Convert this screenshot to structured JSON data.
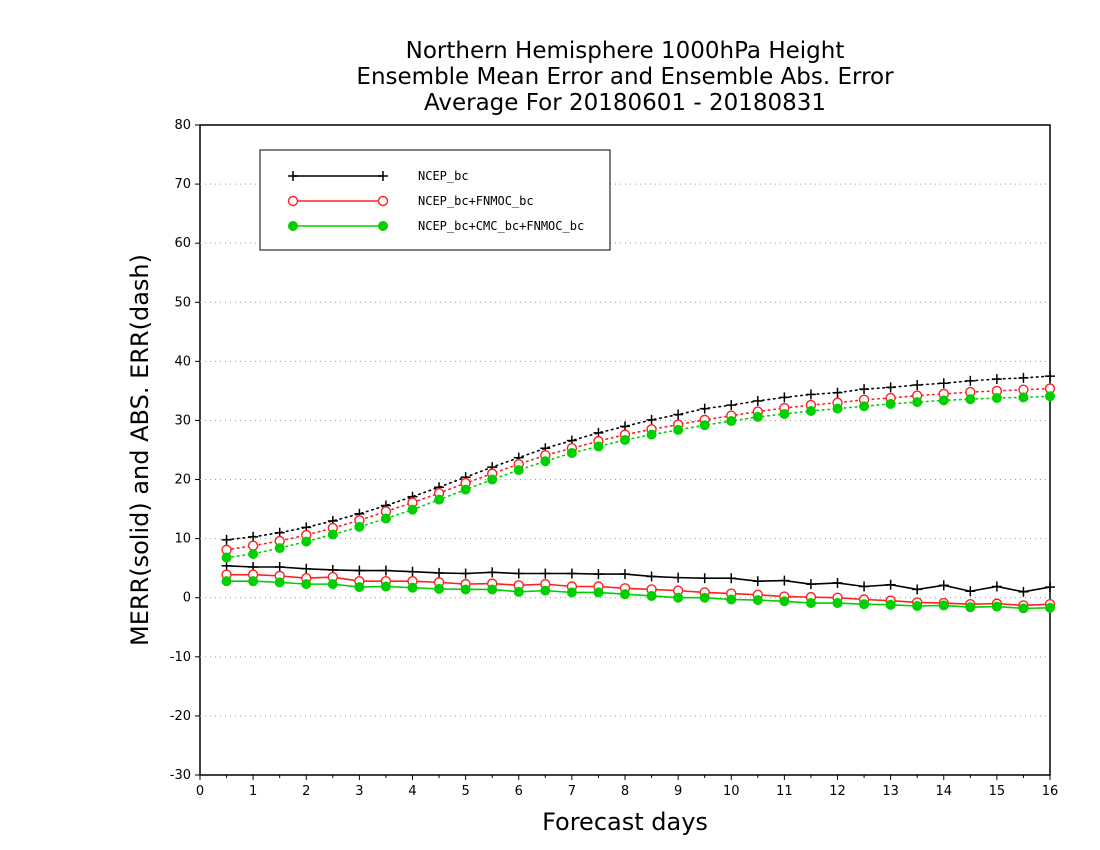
{
  "chart_data": {
    "type": "line",
    "title_lines": [
      "Northern Hemisphere 1000hPa Height",
      "Ensemble Mean Error and Ensemble Abs. Error",
      "Average For 20180601 - 20180831"
    ],
    "xlabel": "Forecast days",
    "ylabel": "MERR(solid) and ABS. ERR(dash)",
    "xlim": [
      0,
      16
    ],
    "ylim": [
      -30,
      80
    ],
    "xticks": [
      0,
      1,
      2,
      3,
      4,
      5,
      6,
      7,
      8,
      9,
      10,
      11,
      12,
      13,
      14,
      15,
      16
    ],
    "yticks": [
      -30,
      -20,
      -10,
      0,
      10,
      20,
      30,
      40,
      50,
      60,
      70,
      80
    ],
    "grid": "horizontal dotted",
    "legend_position": "top-left",
    "x": [
      0.5,
      1,
      1.5,
      2,
      2.5,
      3,
      3.5,
      4,
      4.5,
      5,
      5.5,
      6,
      6.5,
      7,
      7.5,
      8,
      8.5,
      9,
      9.5,
      10,
      10.5,
      11,
      11.5,
      12,
      12.5,
      13,
      13.5,
      14,
      14.5,
      15,
      15.5,
      16
    ],
    "series": [
      {
        "name": "NCEP_bc",
        "color": "#000000",
        "marker": "plus",
        "merr": [
          5.4,
          5.2,
          5.2,
          4.9,
          4.7,
          4.6,
          4.6,
          4.4,
          4.2,
          4.1,
          4.3,
          4.1,
          4.1,
          4.1,
          4.0,
          4.0,
          3.6,
          3.4,
          3.3,
          3.3,
          2.8,
          2.9,
          2.3,
          2.5,
          1.9,
          2.2,
          1.4,
          2.1,
          1.1,
          1.9,
          1.0,
          1.8
        ],
        "abserr": [
          9.8,
          10.3,
          11.0,
          11.9,
          13.0,
          14.2,
          15.6,
          17.1,
          18.7,
          20.4,
          22.1,
          23.7,
          25.3,
          26.6,
          27.9,
          29.0,
          30.1,
          31.0,
          32.0,
          32.6,
          33.3,
          33.9,
          34.4,
          34.7,
          35.3,
          35.6,
          36.0,
          36.3,
          36.7,
          37.0,
          37.2,
          37.5
        ]
      },
      {
        "name": "NCEP_bc+FNMOC_bc",
        "color": "#ff2020",
        "marker": "open-circle",
        "merr": [
          3.9,
          3.9,
          3.7,
          3.3,
          3.5,
          2.8,
          2.8,
          2.8,
          2.6,
          2.3,
          2.4,
          2.1,
          2.3,
          1.9,
          1.9,
          1.6,
          1.4,
          1.2,
          0.9,
          0.7,
          0.5,
          0.2,
          0.1,
          0.0,
          -0.3,
          -0.5,
          -0.8,
          -0.9,
          -1.1,
          -1.0,
          -1.3,
          -1.1
        ],
        "abserr": [
          8.1,
          8.8,
          9.6,
          10.6,
          11.8,
          13.1,
          14.6,
          16.1,
          17.7,
          19.4,
          21.0,
          22.6,
          24.1,
          25.3,
          26.5,
          27.6,
          28.5,
          29.3,
          30.1,
          30.8,
          31.5,
          32.1,
          32.6,
          33.0,
          33.5,
          33.8,
          34.2,
          34.5,
          34.8,
          35.0,
          35.2,
          35.4
        ]
      },
      {
        "name": "NCEP_bc+CMC_bc+FNMOC_bc",
        "color": "#00d000",
        "marker": "filled-circle",
        "merr": [
          2.8,
          2.8,
          2.6,
          2.3,
          2.3,
          1.8,
          1.9,
          1.7,
          1.5,
          1.4,
          1.4,
          1.0,
          1.2,
          0.9,
          0.9,
          0.6,
          0.3,
          0.0,
          0.0,
          -0.3,
          -0.4,
          -0.6,
          -0.9,
          -0.9,
          -1.1,
          -1.2,
          -1.4,
          -1.3,
          -1.6,
          -1.5,
          -1.8,
          -1.7
        ],
        "abserr": [
          6.8,
          7.4,
          8.4,
          9.5,
          10.7,
          12.0,
          13.4,
          14.9,
          16.6,
          18.3,
          20.0,
          21.6,
          23.1,
          24.5,
          25.6,
          26.7,
          27.6,
          28.4,
          29.2,
          29.9,
          30.6,
          31.1,
          31.6,
          32.0,
          32.4,
          32.8,
          33.1,
          33.4,
          33.6,
          33.8,
          33.9,
          34.1
        ]
      }
    ]
  }
}
